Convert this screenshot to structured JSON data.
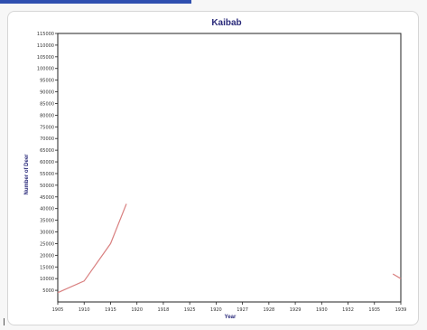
{
  "chart_data": {
    "type": "line",
    "title": "Kaibab",
    "xlabel": "Year",
    "ylabel": "Number of Deer",
    "x_tick_labels": [
      "1905",
      "1910",
      "1915",
      "1920",
      "1918",
      "1925",
      "1920",
      "1927",
      "1928",
      "1929",
      "1930",
      "1932",
      "1935",
      "1939"
    ],
    "y_tick_labels": [
      "5000",
      "10000",
      "15000",
      "20000",
      "25000",
      "30000",
      "35000",
      "40000",
      "45000",
      "50000",
      "55000",
      "60000",
      "65000",
      "70000",
      "75000",
      "80000",
      "85000",
      "90000",
      "95000",
      "100000",
      "105000",
      "110000",
      "115000"
    ],
    "ylim": [
      0,
      115000
    ],
    "grid": false,
    "series": [
      {
        "color": "#d98080",
        "segments": [
          [
            [
              0,
              4000
            ],
            [
              1,
              9000
            ],
            [
              2,
              25000
            ],
            [
              2.6,
              42000
            ]
          ],
          [
            [
              12.7,
              12000
            ],
            [
              13,
              10000
            ]
          ]
        ]
      }
    ]
  }
}
